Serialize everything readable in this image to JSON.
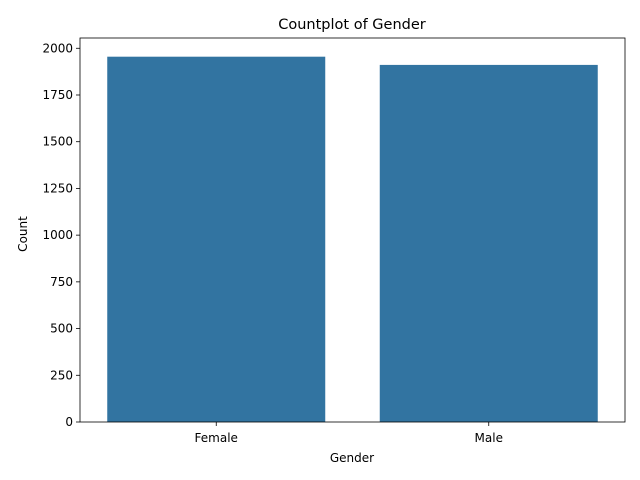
{
  "chart_data": {
    "type": "bar",
    "title": "Countplot of Gender",
    "xlabel": "Gender",
    "ylabel": "Count",
    "categories": [
      "Female",
      "Male"
    ],
    "values": [
      1955,
      1911
    ],
    "ylim": [
      0,
      2055
    ],
    "yticks": [
      0,
      250,
      500,
      750,
      1000,
      1250,
      1500,
      1750,
      2000
    ],
    "bar_color": "#3274a1",
    "grid": false,
    "legend": "none"
  }
}
